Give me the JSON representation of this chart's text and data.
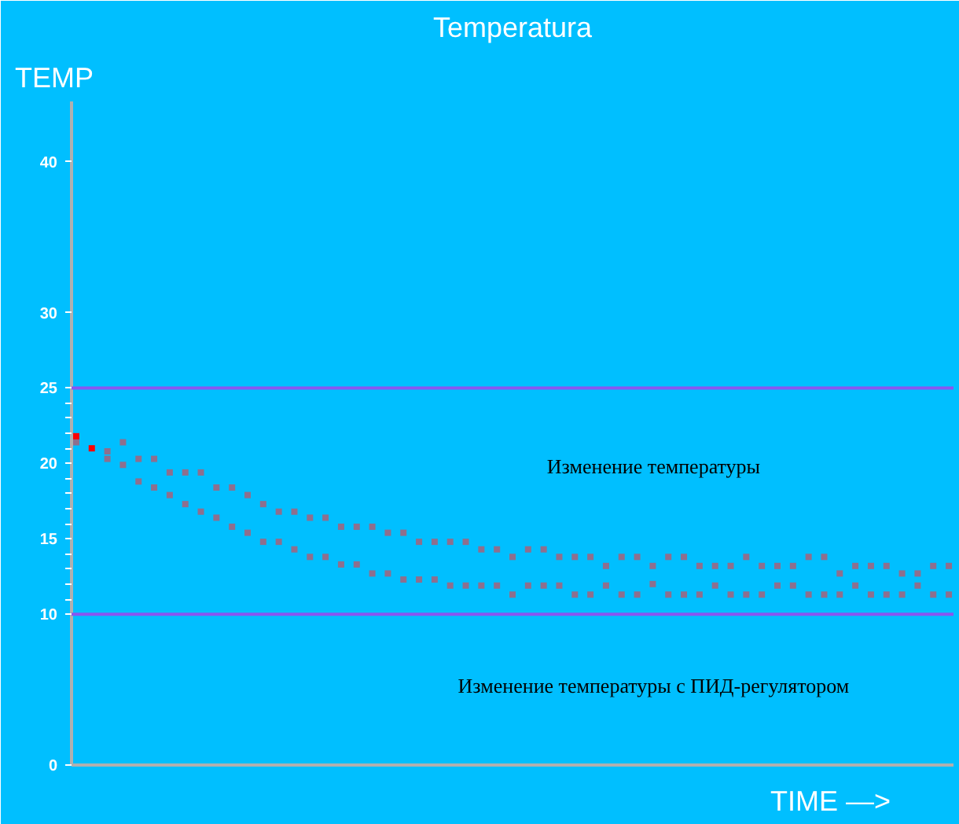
{
  "chart_data": {
    "type": "scatter",
    "title": "Temperatura",
    "xlabel": "TIME —>",
    "ylabel": "TEMP",
    "categories": [
      null,
      null,
      null,
      null,
      null,
      null,
      null,
      null,
      null,
      null,
      null,
      null,
      null,
      null,
      null,
      null,
      null,
      null,
      null,
      null,
      null,
      null,
      null,
      null,
      null,
      null,
      null,
      null,
      null,
      null,
      null,
      null,
      null,
      null,
      null,
      null,
      null,
      null,
      null,
      null,
      null,
      null,
      null,
      null,
      null,
      null,
      null,
      null,
      null,
      null,
      null,
      null,
      null,
      null,
      null,
      null,
      null
    ],
    "ylim": [
      0,
      44
    ],
    "yticks": [
      0,
      10,
      {
        "value": 11,
        "label": null
      },
      {
        "value": 12,
        "label": null
      },
      {
        "value": 13,
        "label": null
      },
      {
        "value": 14,
        "label": null
      },
      15,
      {
        "value": 16,
        "label": null
      },
      {
        "value": 17,
        "label": null
      },
      {
        "value": 18,
        "label": null
      },
      {
        "value": 19,
        "label": null
      },
      20,
      {
        "value": 21,
        "label": null
      },
      {
        "value": 22,
        "label": null
      },
      {
        "value": 23,
        "label": null
      },
      {
        "value": 24,
        "label": null
      },
      25,
      30,
      40
    ],
    "tick_labels": "y",
    "grid": false,
    "marker": "square",
    "series": [
      {
        "color": "#8e6f8e",
        "values": [
          21.4,
          null,
          20.8,
          21.4,
          20.3,
          20.3,
          19.4,
          19.4,
          19.4,
          18.4,
          18.4,
          17.9,
          17.3,
          16.8,
          16.8,
          16.4,
          16.4,
          15.8,
          15.8,
          15.8,
          15.4,
          15.4,
          14.8,
          14.8,
          14.8,
          14.8,
          14.3,
          14.3,
          13.8,
          14.3,
          14.3,
          13.8,
          13.8,
          13.8,
          13.2,
          13.8,
          13.8,
          13.2,
          13.8,
          13.8,
          13.2,
          13.2,
          13.2,
          13.8,
          13.2,
          13.2,
          13.2,
          13.8,
          13.8,
          12.7,
          13.2,
          13.2,
          13.2,
          12.7,
          12.7,
          13.2,
          13.2
        ]
      },
      {
        "color": "#8e6f8e",
        "values": [
          null,
          null,
          20.3,
          19.9,
          18.8,
          18.4,
          17.9,
          17.3,
          16.8,
          16.4,
          15.8,
          15.4,
          14.8,
          14.8,
          14.3,
          13.8,
          13.8,
          13.3,
          13.3,
          12.7,
          12.7,
          12.3,
          12.3,
          12.3,
          11.9,
          11.9,
          11.9,
          11.9,
          11.3,
          11.9,
          11.9,
          11.9,
          11.3,
          11.3,
          11.9,
          11.3,
          11.3,
          12.0,
          11.3,
          11.3,
          11.3,
          11.9,
          11.3,
          11.3,
          11.3,
          11.9,
          11.9,
          11.3,
          11.3,
          11.3,
          11.9,
          11.3,
          11.3,
          11.3,
          11.9,
          11.3,
          11.3
        ]
      },
      {
        "color": "#ff0000",
        "values": [
          21.8,
          21.0,
          null,
          null,
          null,
          null,
          null,
          null,
          null,
          null,
          null,
          null,
          null,
          null,
          null,
          null,
          null,
          null,
          null,
          null,
          null,
          null,
          null,
          null,
          null,
          null,
          null,
          null,
          null,
          null,
          null,
          null,
          null,
          null,
          null,
          null,
          null,
          null,
          null,
          null,
          null,
          null,
          null,
          null,
          null,
          null,
          null,
          null,
          null,
          null,
          null,
          null,
          null,
          null,
          null,
          null,
          null
        ]
      }
    ],
    "ref_lines": [
      {
        "axis": "y",
        "value": 25,
        "color": "#8a55f0"
      },
      {
        "axis": "y",
        "value": 10,
        "color": "#8a55f0"
      }
    ],
    "annotations": [
      "Изменение температуры",
      "Изменение температуры с ПИД-регулятором"
    ]
  }
}
